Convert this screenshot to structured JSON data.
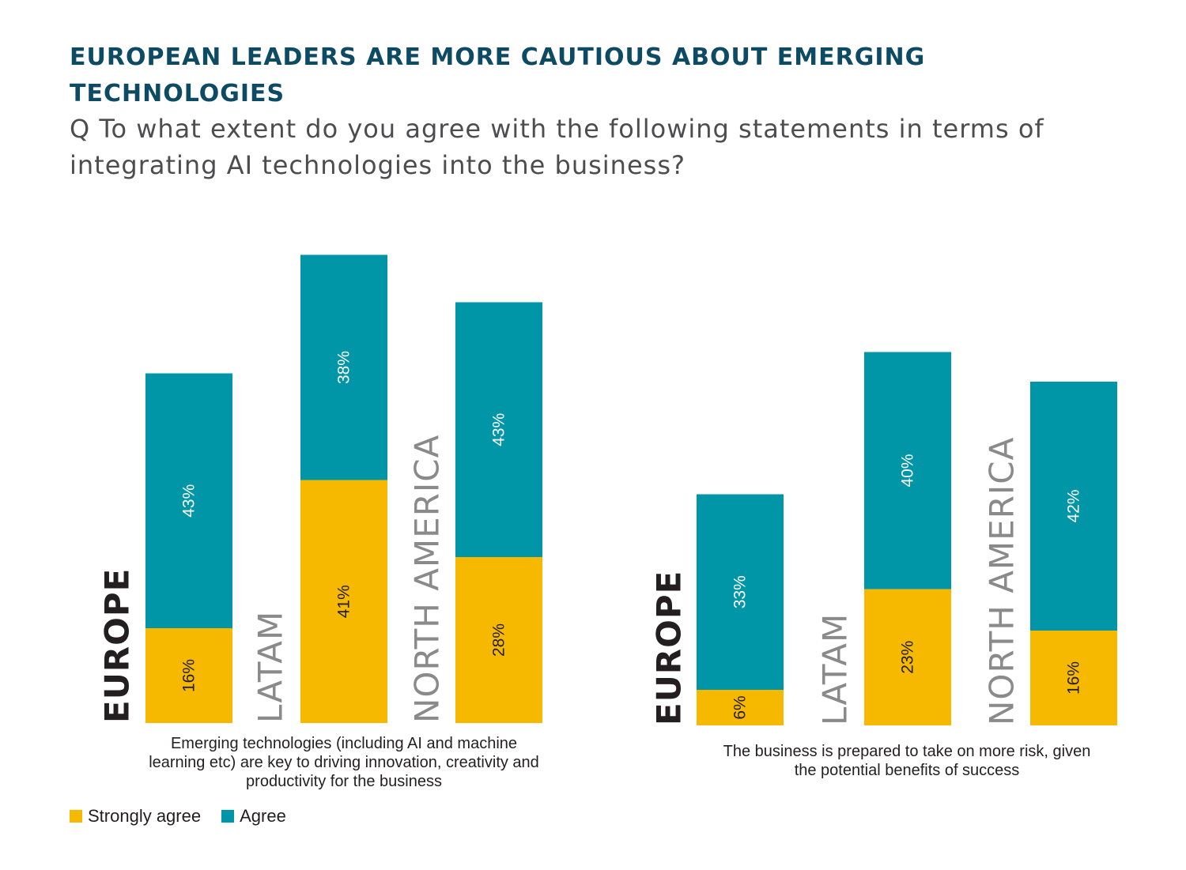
{
  "title": "EUROPEAN LEADERS ARE MORE CAUTIOUS ABOUT EMERGING TECHNOLOGIES",
  "question": "Q To what extent do you agree with the following statements in terms of integrating AI technologies into the business?",
  "colors": {
    "strongly_agree": "#f7b800",
    "agree": "#0096a8",
    "label_dark": "#231f20",
    "label_light": "#8a8a8a"
  },
  "legend": [
    {
      "label": "Strongly agree",
      "color": "#f7b800"
    },
    {
      "label": "Agree",
      "color": "#0096a8"
    }
  ],
  "chart_data": [
    {
      "type": "bar",
      "stacked": true,
      "caption": "Emerging technologies (including AI and machine learning etc) are key to driving innovation, creativity and productivity for the business",
      "categories": [
        "EUROPE",
        "LATAM",
        "NORTH AMERICA"
      ],
      "series": [
        {
          "name": "Strongly agree",
          "values": [
            16,
            41,
            28
          ],
          "labels": [
            "16%",
            "41%",
            "28%"
          ]
        },
        {
          "name": "Agree",
          "values": [
            43,
            38,
            43
          ],
          "labels": [
            "43%",
            "38%",
            "43%"
          ]
        }
      ]
    },
    {
      "type": "bar",
      "stacked": true,
      "caption": "The business is prepared to take on more risk, given the potential benefits of success",
      "categories": [
        "EUROPE",
        "LATAM",
        "NORTH AMERICA"
      ],
      "series": [
        {
          "name": "Strongly agree",
          "values": [
            6,
            23,
            16
          ],
          "labels": [
            "6%",
            "23%",
            "16%"
          ]
        },
        {
          "name": "Agree",
          "values": [
            33,
            40,
            42
          ],
          "labels": [
            "33%",
            "40%",
            "42%"
          ]
        }
      ]
    }
  ]
}
